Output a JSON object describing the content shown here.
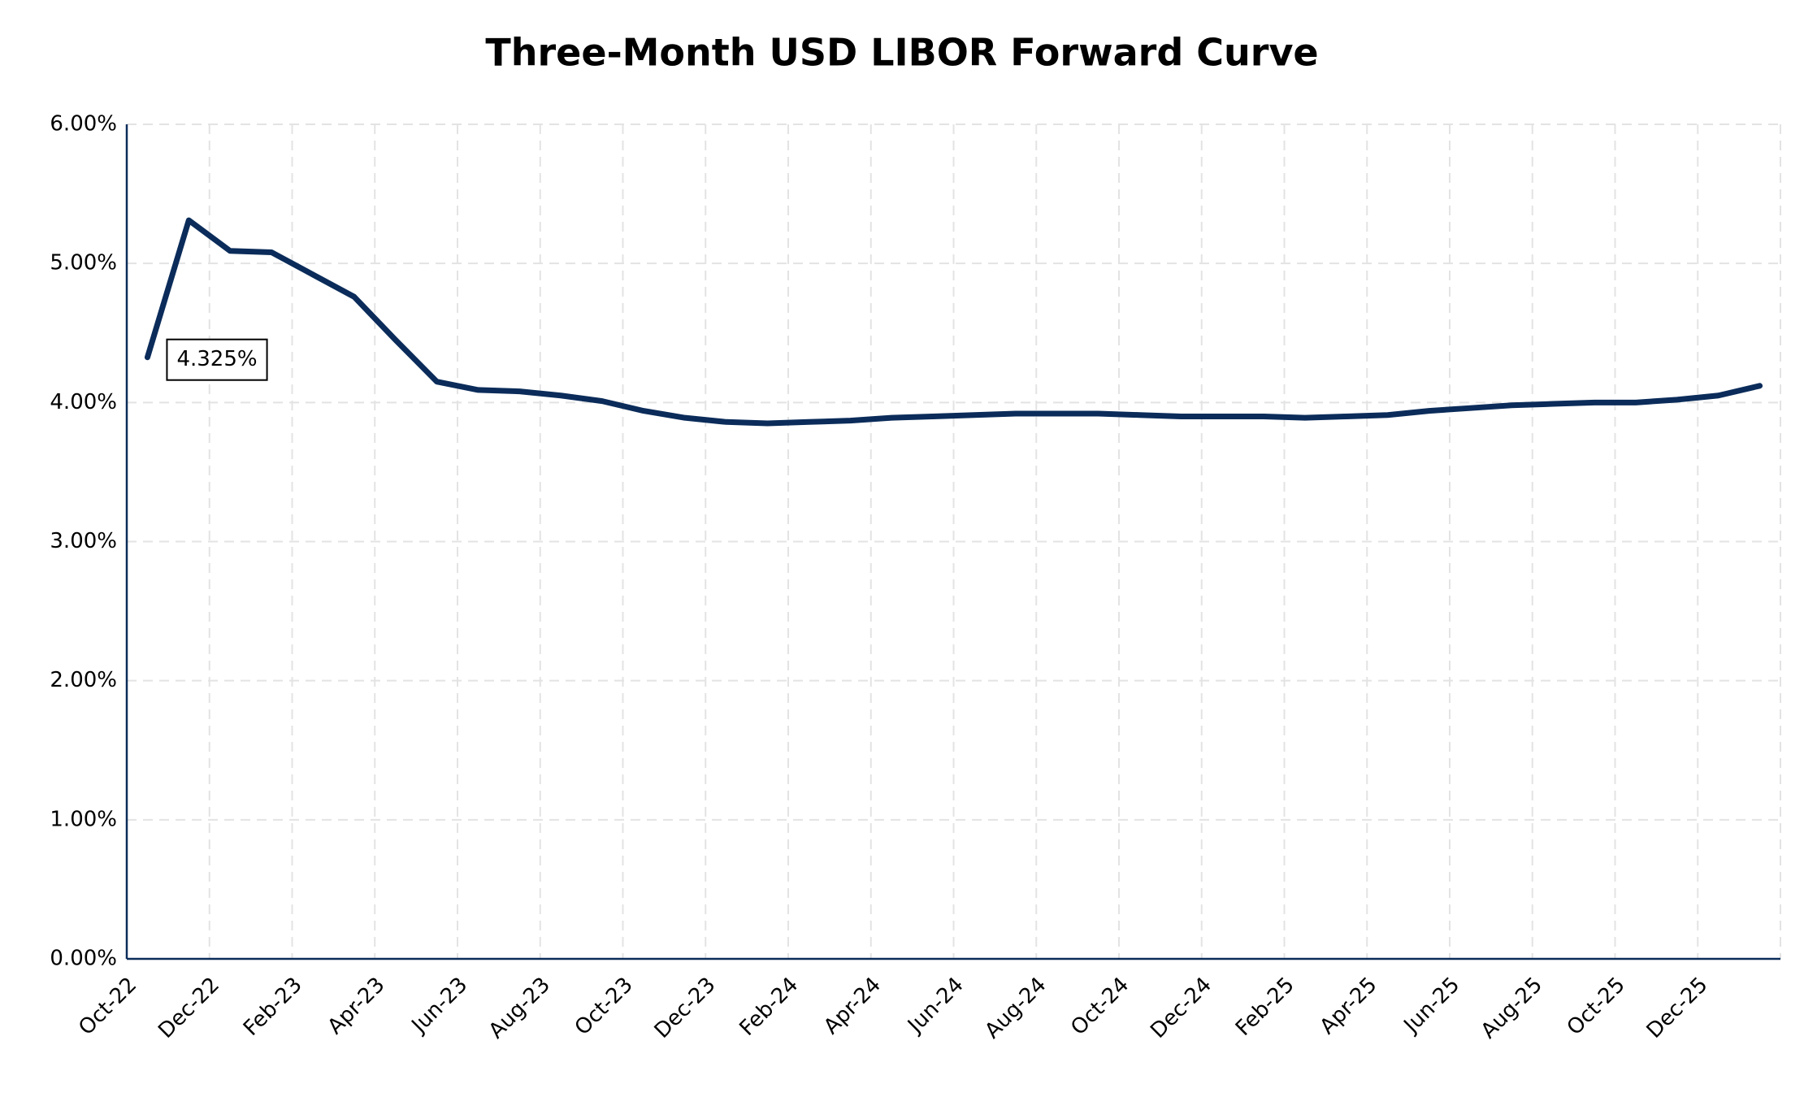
{
  "chart_data": {
    "type": "line",
    "title": "Three-Month USD LIBOR Forward Curve",
    "categories": [
      "Oct-22",
      null,
      "Dec-22",
      null,
      "Feb-23",
      null,
      "Apr-23",
      null,
      "Jun-23",
      null,
      "Aug-23",
      null,
      "Oct-23",
      null,
      "Dec-23",
      null,
      "Feb-24",
      null,
      "Apr-24",
      null,
      "Jun-24",
      null,
      "Aug-24",
      null,
      "Oct-24",
      null,
      "Dec-24",
      null,
      "Feb-25",
      null,
      "Apr-25",
      null,
      "Jun-25",
      null,
      "Aug-25",
      null,
      "Oct-25",
      null,
      "Dec-25",
      null
    ],
    "series": [
      {
        "name": "Three-Month USD LIBOR",
        "color": "#0b2c5a",
        "values": [
          4.325,
          5.31,
          5.09,
          5.08,
          4.92,
          4.76,
          4.45,
          4.15,
          4.09,
          4.08,
          4.05,
          4.01,
          3.94,
          3.89,
          3.86,
          3.85,
          3.86,
          3.87,
          3.89,
          3.9,
          3.91,
          3.92,
          3.92,
          3.92,
          3.91,
          3.9,
          3.9,
          3.9,
          3.89,
          3.9,
          3.91,
          3.94,
          3.96,
          3.98,
          3.99,
          4.0,
          4.0,
          4.02,
          4.05,
          4.12
        ],
        "value_labels": [
          "4.325%",
          null,
          null,
          null,
          null,
          null,
          null,
          null,
          null,
          null,
          null,
          null,
          null,
          null,
          null,
          null,
          null,
          null,
          null,
          null,
          null,
          null,
          null,
          null,
          null,
          null,
          null,
          null,
          null,
          null,
          null,
          null,
          null,
          null,
          null,
          null,
          null,
          null,
          null,
          null
        ]
      }
    ],
    "ylim": [
      0,
      6
    ],
    "yticks": [
      {
        "value": 0,
        "label": "0.00%"
      },
      {
        "value": 1,
        "label": "1.00%"
      },
      {
        "value": 2,
        "label": "2.00%"
      },
      {
        "value": 3,
        "label": "3.00%"
      },
      {
        "value": 4,
        "label": "4.00%"
      },
      {
        "value": 5,
        "label": "5.00%"
      },
      {
        "value": 6,
        "label": "6.00%"
      }
    ],
    "grid": true
  }
}
